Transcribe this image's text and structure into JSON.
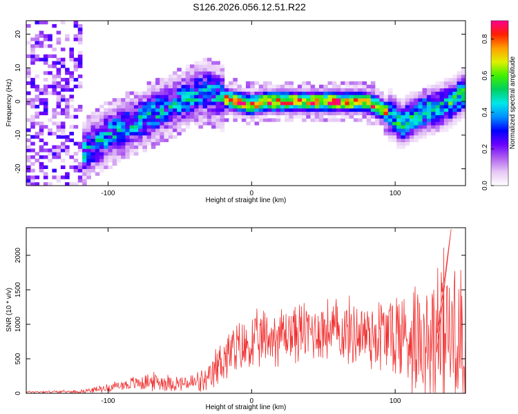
{
  "chart_data": [
    {
      "type": "heatmap",
      "title": "S126.2026.056.12.51.R22",
      "xlabel": "Height of straight line (km)",
      "ylabel": "Frequency (Hz)",
      "xlim": [
        -157,
        149
      ],
      "ylim": [
        -25,
        24
      ],
      "xticks": [
        -100,
        0,
        100
      ],
      "yticks": [
        -20,
        -10,
        0,
        10,
        20
      ],
      "colorbar": {
        "label": "Normalized spectral amplitude",
        "range": [
          0,
          0.9
        ],
        "ticks": [
          "0.0",
          "0.2",
          "0.4",
          "0.6",
          "0.8"
        ],
        "tick_values": [
          0,
          0.2,
          0.4,
          0.6,
          0.8
        ],
        "colors": [
          "#ffffff",
          "#e6c8f5",
          "#b060f0",
          "#6a00ff",
          "#0000ff",
          "#0090ff",
          "#00e8e8",
          "#00d060",
          "#40f000",
          "#e0f000",
          "#ffa000",
          "#ff2000",
          "#ff0090"
        ]
      },
      "ridge": {
        "x": [
          -157,
          -120,
          -110,
          -100,
          -90,
          -80,
          -70,
          -60,
          -50,
          -40,
          -30,
          -20,
          -10,
          0,
          10,
          20,
          40,
          60,
          80,
          90,
          100,
          105,
          110,
          120,
          130,
          140,
          149
        ],
        "y": [
          -16,
          -16,
          -13,
          -10,
          -8,
          -6,
          -4,
          -2,
          0,
          2,
          3,
          1,
          0,
          -1,
          0,
          0,
          0,
          0,
          0,
          -2,
          -5,
          -7,
          -5,
          -3,
          -2,
          0,
          3
        ]
      }
    },
    {
      "type": "line",
      "xlabel": "Height of straight line (km)",
      "ylabel": "SNR (10 * v/v)",
      "xlim": [
        -157,
        149
      ],
      "ylim": [
        0,
        2400
      ],
      "xticks": [
        -100,
        0,
        100
      ],
      "yticks": [
        0,
        500,
        1000,
        1500,
        2000
      ],
      "series": [
        {
          "name": "SNR",
          "color": "#f03030",
          "envelope_x": [
            -157,
            -120,
            -110,
            -100,
            -90,
            -80,
            -70,
            -60,
            -50,
            -40,
            -30,
            -25,
            -20,
            -10,
            0,
            10,
            20,
            30,
            40,
            50,
            60,
            70,
            80,
            90,
            100,
            110,
            120,
            130,
            140,
            149
          ],
          "envelope_mean": [
            20,
            25,
            50,
            80,
            120,
            150,
            170,
            160,
            140,
            150,
            170,
            350,
            520,
            620,
            700,
            800,
            850,
            880,
            900,
            920,
            900,
            880,
            870,
            860,
            850,
            830,
            880,
            850,
            880,
            900
          ],
          "envelope_spread": [
            15,
            20,
            40,
            60,
            80,
            110,
            130,
            130,
            110,
            150,
            200,
            300,
            380,
            400,
            420,
            420,
            430,
            430,
            440,
            450,
            460,
            480,
            520,
            600,
            680,
            780,
            900,
            1000,
            1050,
            1000
          ],
          "peak_max": 2380
        }
      ]
    }
  ]
}
